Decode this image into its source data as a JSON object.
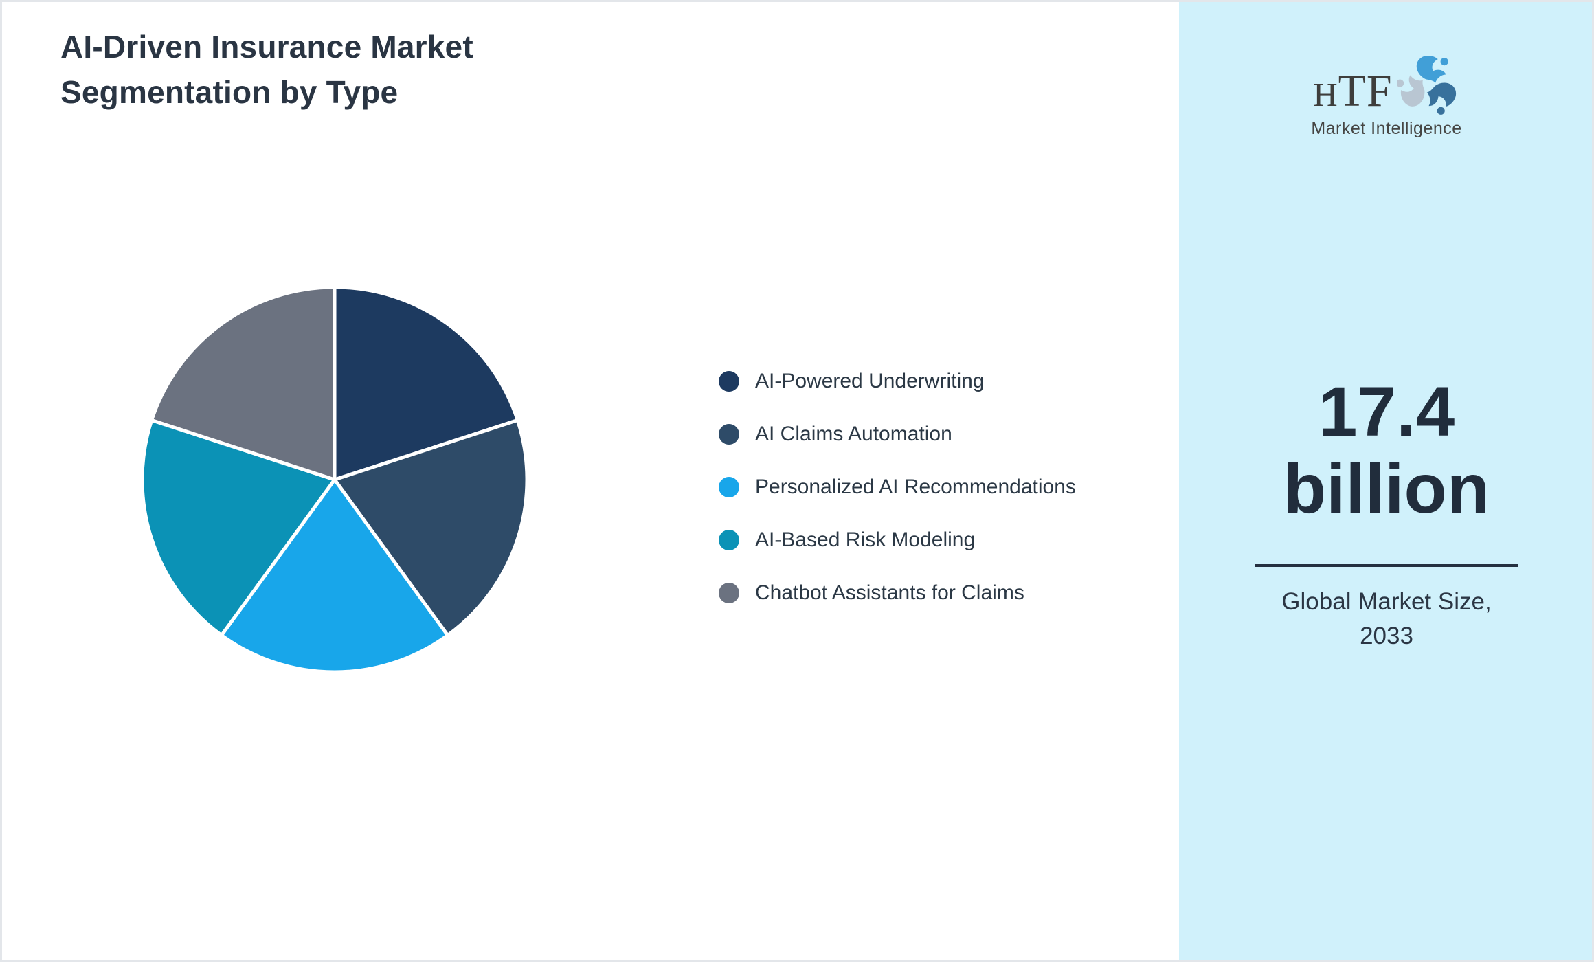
{
  "title": {
    "line1": "AI-Driven Insurance Market",
    "line2": "Segmentation by Type"
  },
  "chart_data": {
    "type": "pie",
    "title": "AI-Driven Insurance Market Segmentation by Type",
    "categories": [
      "AI-Powered Underwriting",
      "AI Claims Automation",
      "Personalized AI Recommendations",
      "AI-Based Risk Modeling",
      "Chatbot Assistants for Claims"
    ],
    "values": [
      20,
      20,
      20,
      20,
      20
    ],
    "colors": [
      "#1d3a60",
      "#2e4b68",
      "#18a6ea",
      "#0b92b6",
      "#6b7280"
    ],
    "start_angle_deg": 0,
    "direction": "clockwise",
    "legend_position": "right",
    "slice_border_color": "#ffffff"
  },
  "logo": {
    "name": "HTF",
    "subtitle": "Market Intelligence",
    "swirl_colors": [
      "#419fd7",
      "#38719c",
      "#b9c6d2"
    ]
  },
  "panel": {
    "value": "17.4 billion",
    "caption_line1": "Global Market Size,",
    "caption_line2": "2033"
  },
  "colors": {
    "panel_background": "#d0f1fb",
    "title_text": "#2a3543",
    "big_number_text": "#212d3c",
    "divider": "#243040",
    "page_border": "#e3e6ea"
  }
}
